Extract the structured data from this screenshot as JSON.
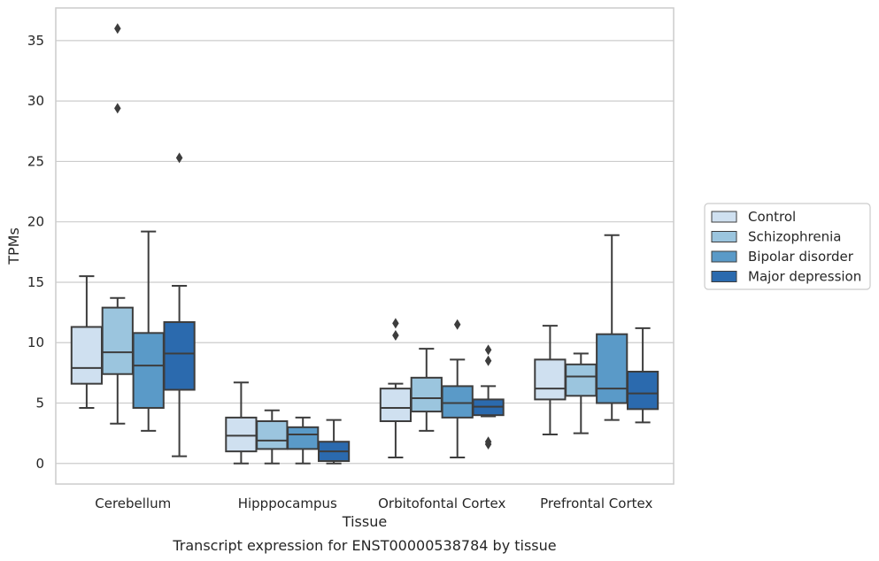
{
  "chart_data": {
    "type": "boxplot",
    "title": "Transcript expression for ENST00000538784 by tissue",
    "xlabel": "Tissue",
    "ylabel": "TPMs",
    "ylim": [
      -1.7,
      37.7
    ],
    "yticks": [
      0,
      5,
      10,
      15,
      20,
      25,
      30,
      35
    ],
    "grid": "horizontal",
    "legend_position": "right",
    "categories": [
      "Cerebellum",
      "Hipppocampus",
      "Orbitofontal Cortex",
      "Prefrontal Cortex"
    ],
    "series": [
      {
        "name": "Control",
        "color": "#cfe0f0",
        "boxes": [
          {
            "whislo": 4.6,
            "q1": 6.6,
            "med": 7.9,
            "q3": 11.3,
            "whishi": 15.5,
            "fliers": []
          },
          {
            "whislo": 0.0,
            "q1": 1.0,
            "med": 2.3,
            "q3": 3.8,
            "whishi": 6.7,
            "fliers": []
          },
          {
            "whislo": 0.5,
            "q1": 3.5,
            "med": 4.6,
            "q3": 6.2,
            "whishi": 6.6,
            "fliers": [
              10.6,
              11.6
            ]
          },
          {
            "whislo": 2.4,
            "q1": 5.3,
            "med": 6.2,
            "q3": 8.6,
            "whishi": 11.4,
            "fliers": []
          }
        ]
      },
      {
        "name": "Schizophrenia",
        "color": "#9bc5de",
        "boxes": [
          {
            "whislo": 3.3,
            "q1": 7.4,
            "med": 9.2,
            "q3": 12.9,
            "whishi": 13.7,
            "fliers": [
              29.4,
              36.0
            ]
          },
          {
            "whislo": 0.0,
            "q1": 1.2,
            "med": 1.9,
            "q3": 3.5,
            "whishi": 4.4,
            "fliers": []
          },
          {
            "whislo": 2.7,
            "q1": 4.3,
            "med": 5.4,
            "q3": 7.1,
            "whishi": 9.5,
            "fliers": []
          },
          {
            "whislo": 2.5,
            "q1": 5.6,
            "med": 7.2,
            "q3": 8.2,
            "whishi": 9.1,
            "fliers": []
          }
        ]
      },
      {
        "name": "Bipolar disorder",
        "color": "#5a9ac8",
        "boxes": [
          {
            "whislo": 2.7,
            "q1": 4.6,
            "med": 8.1,
            "q3": 10.8,
            "whishi": 19.2,
            "fliers": []
          },
          {
            "whislo": 0.0,
            "q1": 1.2,
            "med": 2.4,
            "q3": 3.0,
            "whishi": 3.8,
            "fliers": []
          },
          {
            "whislo": 0.5,
            "q1": 3.8,
            "med": 5.0,
            "q3": 6.4,
            "whishi": 8.6,
            "fliers": [
              11.5
            ]
          },
          {
            "whislo": 3.6,
            "q1": 5.0,
            "med": 6.2,
            "q3": 10.7,
            "whishi": 18.9,
            "fliers": []
          }
        ]
      },
      {
        "name": "Major depression",
        "color": "#2b6aae",
        "boxes": [
          {
            "whislo": 0.6,
            "q1": 6.1,
            "med": 9.1,
            "q3": 11.7,
            "whishi": 14.7,
            "fliers": [
              25.3
            ]
          },
          {
            "whislo": 0.0,
            "q1": 0.2,
            "med": 1.0,
            "q3": 1.8,
            "whishi": 3.6,
            "fliers": []
          },
          {
            "whislo": 3.9,
            "q1": 4.0,
            "med": 4.7,
            "q3": 5.3,
            "whishi": 6.4,
            "fliers": [
              1.6,
              1.8,
              8.5,
              9.4
            ]
          },
          {
            "whislo": 3.4,
            "q1": 4.5,
            "med": 5.8,
            "q3": 7.6,
            "whishi": 11.2,
            "fliers": []
          }
        ]
      }
    ]
  }
}
